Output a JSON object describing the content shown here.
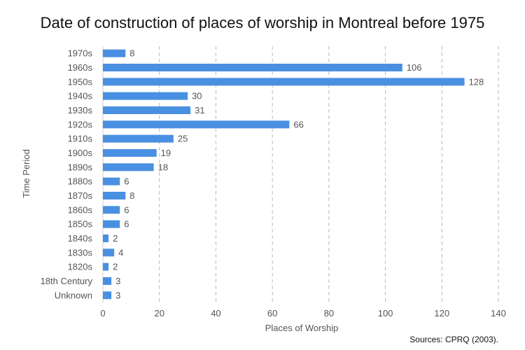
{
  "chart_data": {
    "type": "bar",
    "orientation": "horizontal",
    "title": "Date of construction of places of worship in Montreal before 1975",
    "xlabel": "Places of Worship",
    "ylabel": "Time Period",
    "categories": [
      "1970s",
      "1960s",
      "1950s",
      "1940s",
      "1930s",
      "1920s",
      "1910s",
      "1900s",
      "1890s",
      "1880s",
      "1870s",
      "1860s",
      "1850s",
      "1840s",
      "1830s",
      "1820s",
      "18th Century",
      "Unknown"
    ],
    "values": [
      8,
      106,
      128,
      30,
      31,
      66,
      25,
      19,
      18,
      6,
      8,
      6,
      6,
      2,
      4,
      2,
      3,
      3
    ],
    "xlim": [
      0,
      140
    ],
    "xticks": [
      0,
      20,
      40,
      60,
      80,
      100,
      120,
      140
    ],
    "grid": "vertical dashed",
    "data_labels": true,
    "bar_color": "#4a90e2",
    "source": "Sources: CPRQ (2003)."
  }
}
